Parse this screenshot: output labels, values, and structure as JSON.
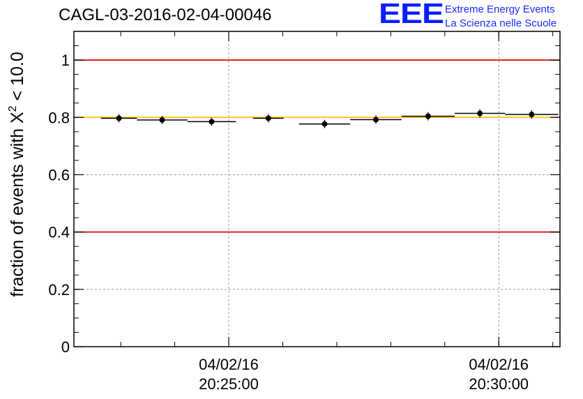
{
  "header": {
    "title": "CAGL-03-2016-02-04-00046",
    "logo_text": "EEE",
    "logo_line1": "Extreme Energy Events",
    "logo_line2": "La Scienza nelle Scuole"
  },
  "colors": {
    "limit_line": "#e00000",
    "reference_line": "#ffbf00",
    "logo": "#0a1fff",
    "grid": "#9a9a9a",
    "marker": "#000000"
  },
  "chart_data": {
    "type": "scatter",
    "title": "CAGL-03-2016-02-04-00046",
    "xlabel": "",
    "ylabel": "fraction of events with χ² < 10.0",
    "ylabel_main": "fraction of events with Χ",
    "ylabel_sup": "2",
    "ylabel_tail": " < 10.0",
    "ylim": [
      0,
      1.1
    ],
    "xlim": [
      "2016-02-04T20:22:08",
      "2016-02-04T20:31:08"
    ],
    "x_ticks": [
      {
        "x": "2016-02-04T20:25:00",
        "line1": "04/02/16",
        "line2": "20:25:00"
      },
      {
        "x": "2016-02-04T20:30:00",
        "line1": "04/02/16",
        "line2": "20:30:00"
      }
    ],
    "y_ticks": [
      {
        "value": 0,
        "label": "0"
      },
      {
        "value": 0.2,
        "label": "0.2"
      },
      {
        "value": 0.4,
        "label": "0.4"
      },
      {
        "value": 0.6,
        "label": "0.6"
      },
      {
        "value": 0.8,
        "label": "0.8"
      },
      {
        "value": 1,
        "label": "1"
      }
    ],
    "grid": true,
    "horizontal_lines": [
      {
        "y": 1.0,
        "color": "#e00000"
      },
      {
        "y": 0.8,
        "color": "#ffbf00"
      },
      {
        "y": 0.4,
        "color": "#e00000"
      }
    ],
    "series": [
      {
        "points": [
          {
            "x_start": "2016-02-04T20:22:38",
            "x_end": "2016-02-04T20:23:18",
            "y": 0.797
          },
          {
            "x_start": "2016-02-04T20:23:18",
            "x_end": "2016-02-04T20:24:14",
            "y": 0.791
          },
          {
            "x_start": "2016-02-04T20:24:14",
            "x_end": "2016-02-04T20:25:08",
            "y": 0.785
          },
          {
            "x_start": "2016-02-04T20:25:27",
            "x_end": "2016-02-04T20:26:01",
            "y": 0.797
          },
          {
            "x_start": "2016-02-04T20:26:18",
            "x_end": "2016-02-04T20:27:15",
            "y": 0.777
          },
          {
            "x_start": "2016-02-04T20:27:15",
            "x_end": "2016-02-04T20:28:12",
            "y": 0.792
          },
          {
            "x_start": "2016-02-04T20:28:12",
            "x_end": "2016-02-04T20:29:11",
            "y": 0.804
          },
          {
            "x_start": "2016-02-04T20:29:11",
            "x_end": "2016-02-04T20:30:07",
            "y": 0.814
          },
          {
            "x_start": "2016-02-04T20:30:07",
            "x_end": "2016-02-04T20:31:06",
            "y": 0.81
          }
        ]
      }
    ]
  }
}
